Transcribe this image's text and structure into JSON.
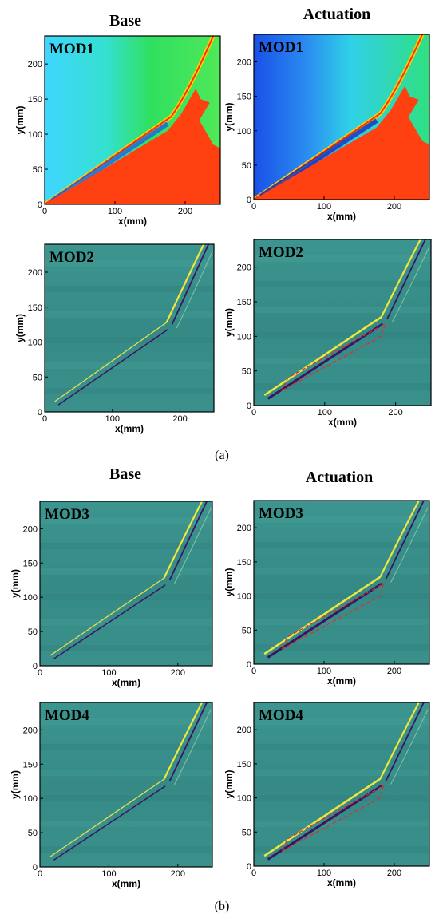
{
  "figure": {
    "caption_a": "(a)",
    "caption_b": "(b)",
    "groups": [
      {
        "columns": [
          "Base",
          "Actuation"
        ],
        "rows": [
          {
            "panels": [
              {
                "label": "MOD1",
                "colormap": "jet",
                "xticks": [
                  "0",
                  "100",
                  "200"
                ],
                "yticks": [
                  "0",
                  "50",
                  "100",
                  "150",
                  "200"
                ],
                "xlabel": "x(mm)",
                "ylabel": "y(mm)"
              },
              {
                "label": "MOD1",
                "colormap": "jet",
                "xticks": [
                  "0",
                  "100",
                  "200"
                ],
                "yticks": [
                  "0",
                  "50",
                  "100",
                  "150",
                  "200"
                ],
                "xlabel": "x(mm)",
                "ylabel": "y(mm)"
              }
            ]
          },
          {
            "panels": [
              {
                "label": "MOD2",
                "colormap": "viridis",
                "xticks": [
                  "0",
                  "100",
                  "200"
                ],
                "yticks": [
                  "0",
                  "50",
                  "100",
                  "150",
                  "200"
                ],
                "xlabel": "x(mm)",
                "ylabel": "y(mm)"
              },
              {
                "label": "MOD2",
                "colormap": "viridis",
                "highlight": true,
                "xticks": [
                  "0",
                  "100",
                  "200"
                ],
                "yticks": [
                  "0",
                  "50",
                  "100",
                  "150",
                  "200"
                ],
                "xlabel": "x(mm)",
                "ylabel": "y(mm)"
              }
            ]
          }
        ]
      },
      {
        "columns": [
          "Base",
          "Actuation"
        ],
        "rows": [
          {
            "panels": [
              {
                "label": "MOD3",
                "colormap": "viridis",
                "xticks": [
                  "0",
                  "100",
                  "200"
                ],
                "yticks": [
                  "0",
                  "50",
                  "100",
                  "150",
                  "200"
                ],
                "xlabel": "x(mm)",
                "ylabel": "y(mm)"
              },
              {
                "label": "MOD3",
                "colormap": "viridis",
                "highlight": true,
                "xticks": [
                  "0",
                  "100",
                  "200"
                ],
                "yticks": [
                  "0",
                  "50",
                  "100",
                  "150",
                  "200"
                ],
                "xlabel": "x(mm)",
                "ylabel": "y(mm)"
              }
            ]
          },
          {
            "panels": [
              {
                "label": "MOD4",
                "colormap": "viridis",
                "xticks": [
                  "0",
                  "100",
                  "200"
                ],
                "yticks": [
                  "0",
                  "50",
                  "100",
                  "150",
                  "200"
                ],
                "xlabel": "x(mm)",
                "ylabel": "y(mm)"
              },
              {
                "label": "MOD4",
                "colormap": "viridis",
                "highlight": true,
                "xticks": [
                  "0",
                  "100",
                  "200"
                ],
                "yticks": [
                  "0",
                  "50",
                  "100",
                  "150",
                  "200"
                ],
                "xlabel": "x(mm)",
                "ylabel": "y(mm)"
              }
            ]
          }
        ]
      }
    ],
    "axes": {
      "xlim": [
        0,
        250
      ],
      "ylim": [
        0,
        240
      ]
    },
    "colors": {
      "jet_body": "#ff4010",
      "jet_field": "#40d8ff",
      "viridis_bg": "#3a8f8a",
      "highlight_box": "#d93030"
    }
  }
}
